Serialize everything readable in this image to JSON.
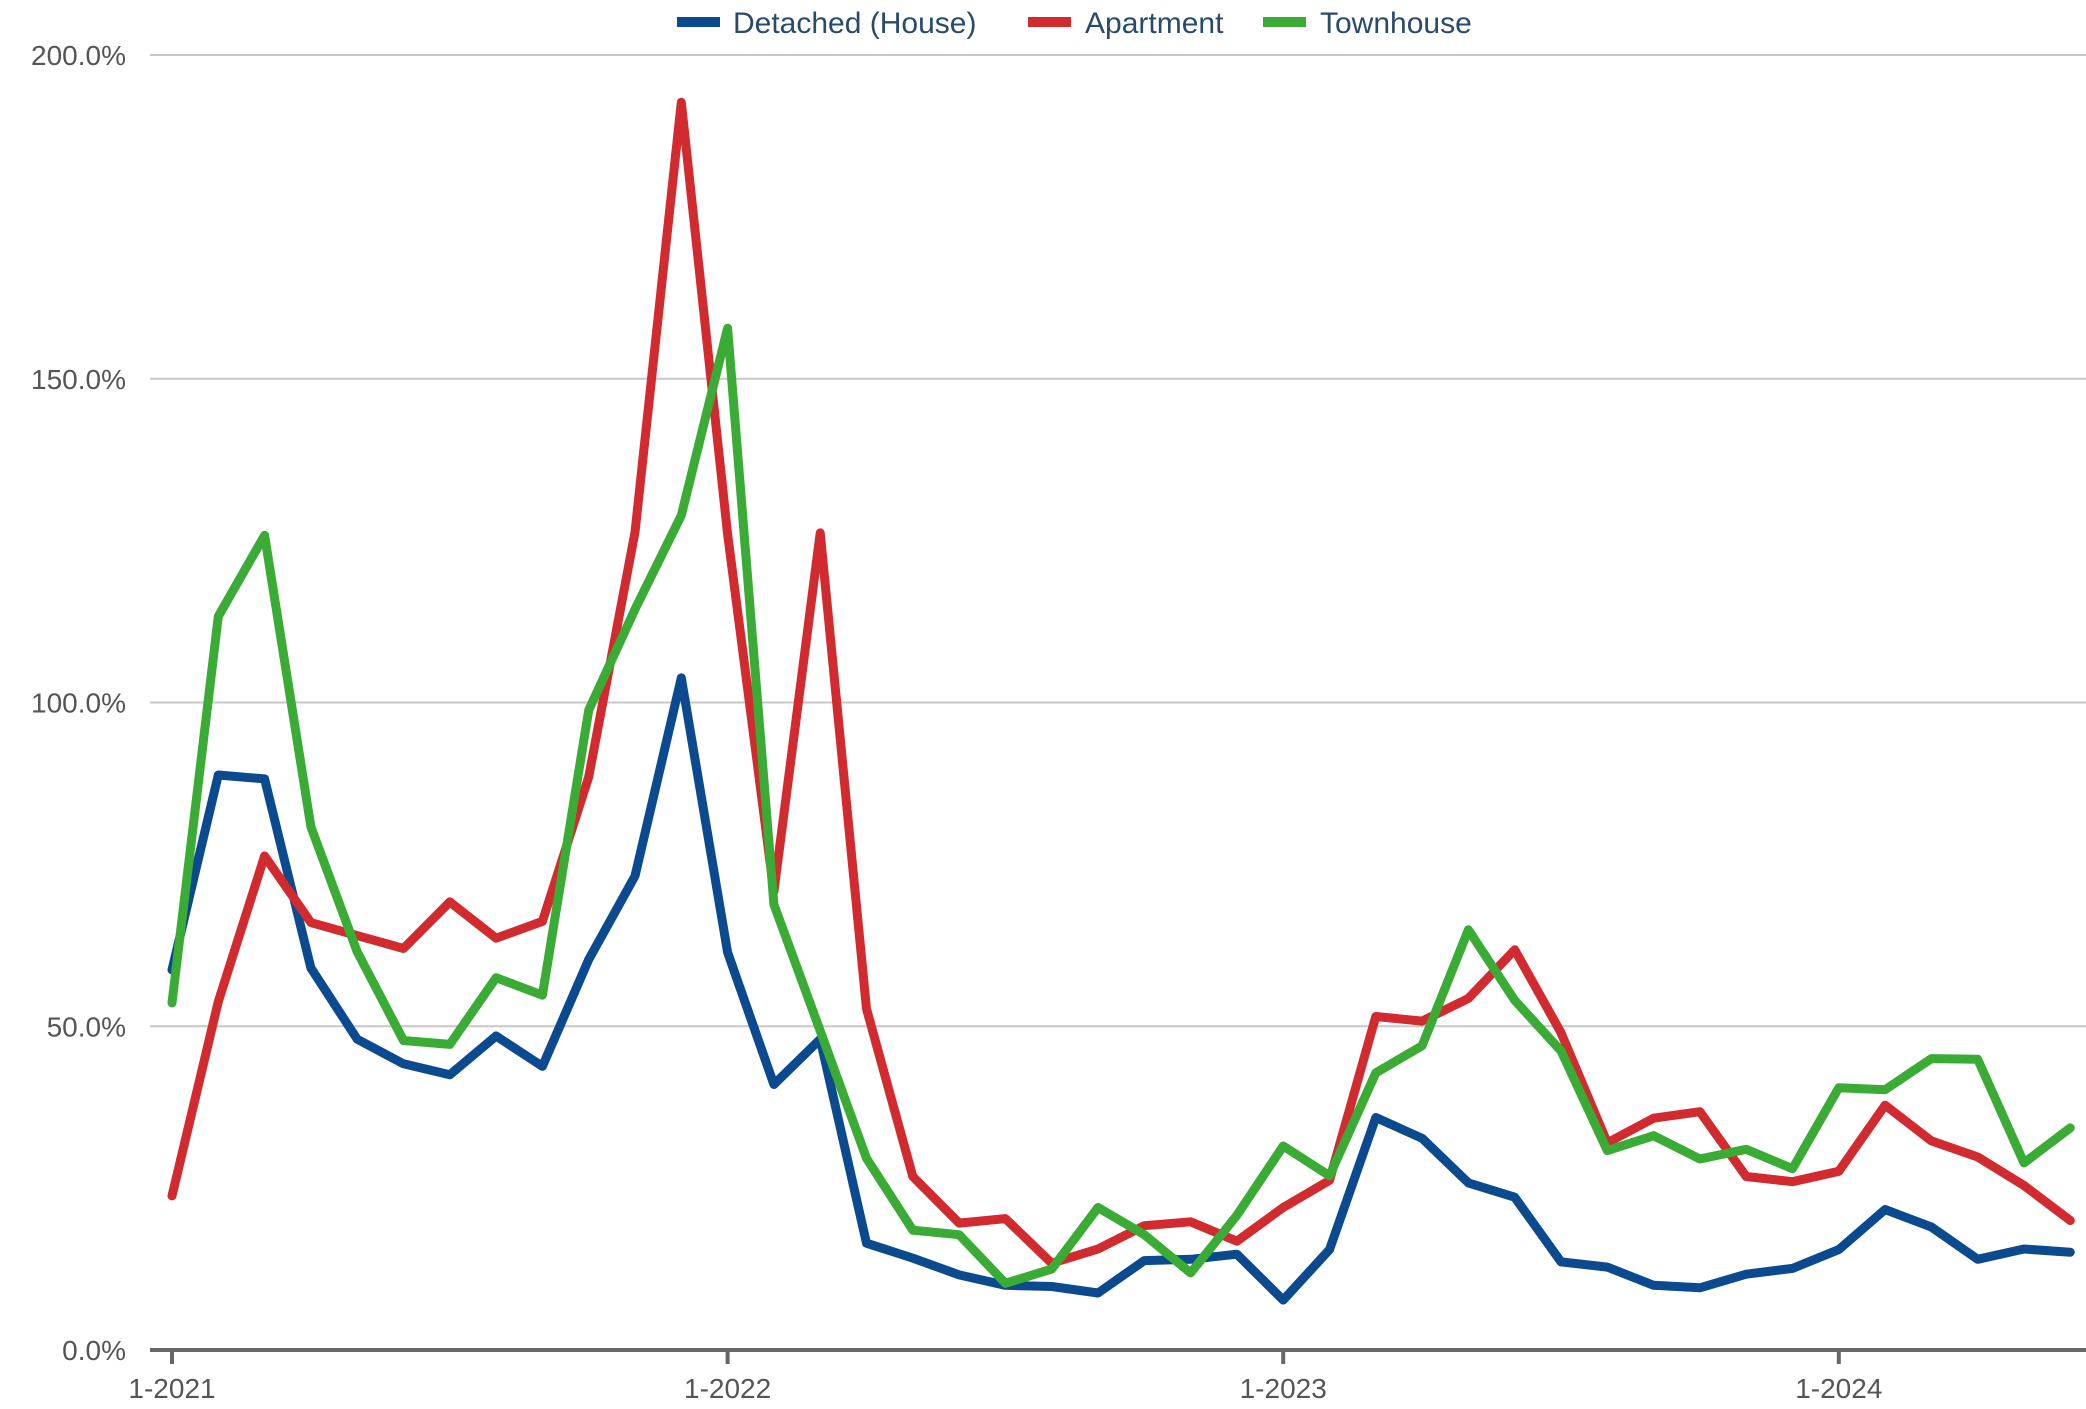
{
  "chart_data": {
    "type": "line",
    "title": "",
    "xlabel": "",
    "ylabel": "",
    "ylim": [
      0,
      200
    ],
    "y_ticks": [
      0,
      50,
      100,
      150,
      200
    ],
    "y_tick_labels": [
      "0.0%",
      "50.0%",
      "100.0%",
      "150.0%",
      "200.0%"
    ],
    "x_ticks": [
      1,
      13,
      25,
      37
    ],
    "x_tick_labels": [
      "1-2021",
      "1-2022",
      "1-2023",
      "1-2024"
    ],
    "x": [
      "1-2021",
      "2-2021",
      "3-2021",
      "4-2021",
      "5-2021",
      "6-2021",
      "7-2021",
      "8-2021",
      "9-2021",
      "10-2021",
      "11-2021",
      "12-2021",
      "1-2022",
      "2-2022",
      "3-2022",
      "4-2022",
      "5-2022",
      "6-2022",
      "7-2022",
      "8-2022",
      "9-2022",
      "10-2022",
      "11-2022",
      "12-2022",
      "1-2023",
      "2-2023",
      "3-2023",
      "4-2023",
      "5-2023",
      "6-2023",
      "7-2023",
      "8-2023",
      "9-2023",
      "10-2023",
      "11-2023",
      "12-2023",
      "1-2024",
      "2-2024",
      "3-2024",
      "4-2024",
      "5-2024",
      "6-2024"
    ],
    "grid": true,
    "legend_position": "top-center",
    "series": [
      {
        "name": "Detached (House)",
        "color": "#0b4a8f",
        "values": [
          58.7,
          88.8,
          88.2,
          59.0,
          48.0,
          44.2,
          42.5,
          48.5,
          43.8,
          60.3,
          73.2,
          103.8,
          61.4,
          41.0,
          48.0,
          16.5,
          14.2,
          11.6,
          10.0,
          9.8,
          8.8,
          13.8,
          14.0,
          14.8,
          7.7,
          15.5,
          35.9,
          32.7,
          25.8,
          23.6,
          13.6,
          12.8,
          10.0,
          9.6,
          11.7,
          12.6,
          15.5,
          21.7,
          19.0,
          14.0,
          15.6,
          15.1
        ]
      },
      {
        "name": "Apartment",
        "color": "#d12a2f",
        "values": [
          23.8,
          53.8,
          76.3,
          66.0,
          64.0,
          62.0,
          69.2,
          63.6,
          66.2,
          88.5,
          126.3,
          192.7,
          126.0,
          70.8,
          126.2,
          52.7,
          26.8,
          19.6,
          20.3,
          13.4,
          15.6,
          19.2,
          19.8,
          16.8,
          22.0,
          26.2,
          51.5,
          50.8,
          54.3,
          61.8,
          49.0,
          32.0,
          35.8,
          36.8,
          26.8,
          26.0,
          27.6,
          37.8,
          32.3,
          29.8,
          25.4,
          20.0
        ]
      },
      {
        "name": "Townhouse",
        "color": "#3aab35",
        "values": [
          53.6,
          113.3,
          125.8,
          80.8,
          61.5,
          47.8,
          47.2,
          57.5,
          54.8,
          98.8,
          114.4,
          128.9,
          157.8,
          68.8,
          49.3,
          29.6,
          18.5,
          17.8,
          10.3,
          12.5,
          22.0,
          17.8,
          11.9,
          20.8,
          31.5,
          26.9,
          42.8,
          47.0,
          64.9,
          54.0,
          46.2,
          30.8,
          33.1,
          29.5,
          31.0,
          28.0,
          40.5,
          40.2,
          45.0,
          44.9,
          28.9,
          34.3
        ]
      }
    ]
  }
}
